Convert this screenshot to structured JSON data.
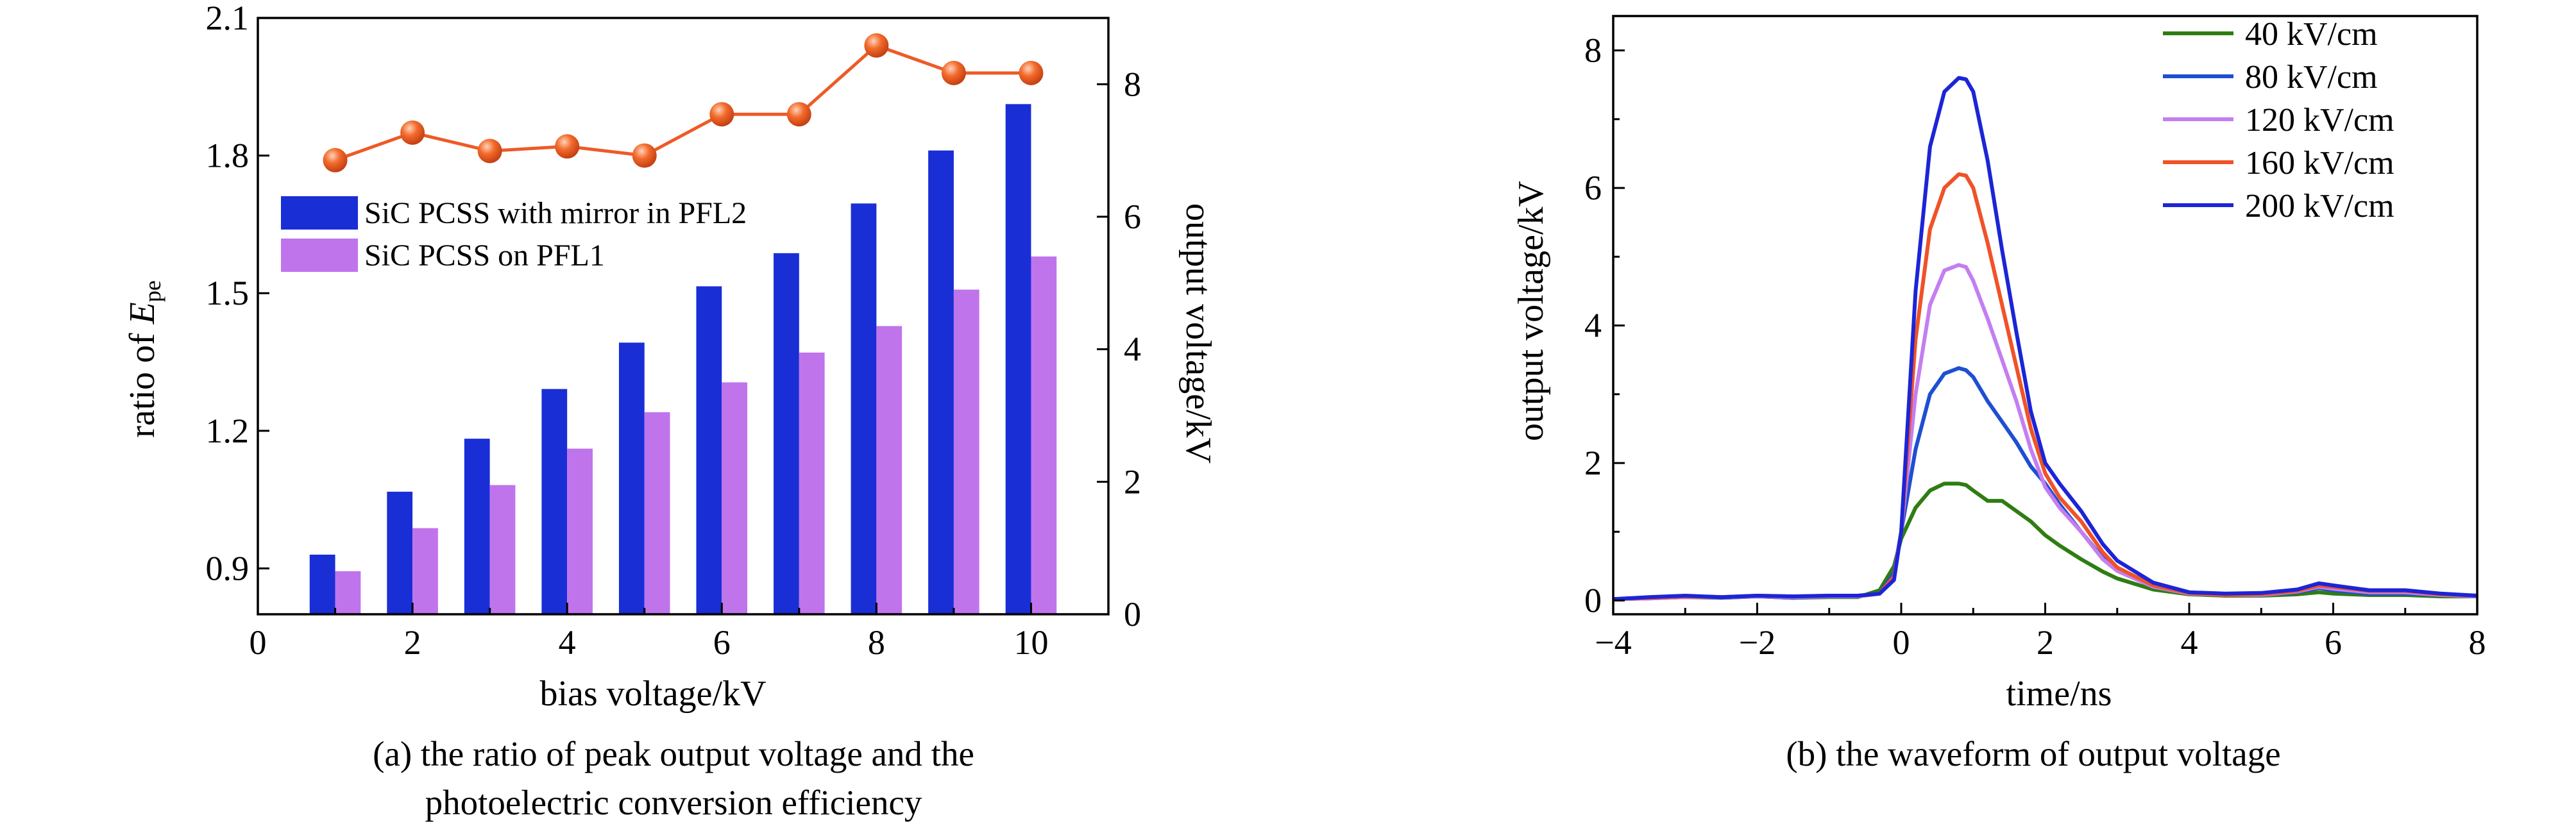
{
  "chart_data": [
    {
      "id": "a",
      "type": "bar",
      "caption_line1": "(a) the ratio of peak output voltage and the",
      "caption_line2": "photoelectric conversion efficiency",
      "xlabel": "bias voltage/kV",
      "ylabel_left_prefix": "ratio of ",
      "ylabel_left_symbol": "E",
      "ylabel_left_subscript": "pe",
      "ylabel_right": "output voltage/kV",
      "xlim": [
        0,
        11
      ],
      "x_ticks": [
        0,
        2,
        4,
        6,
        8,
        10
      ],
      "ylim_left": [
        0.8,
        2.1
      ],
      "y_left_ticks": [
        0.9,
        1.2,
        1.5,
        1.8,
        2.1
      ],
      "y_left_tick_labels": [
        "0.9",
        "1.2",
        "1.5",
        "1.8",
        "2.1"
      ],
      "ylim_right": [
        0,
        9
      ],
      "y_right_ticks": [
        0,
        2,
        4,
        6,
        8
      ],
      "categories": [
        1,
        2,
        3,
        4,
        5,
        6,
        7,
        8,
        9,
        10
      ],
      "series": [
        {
          "name": "SiC PCSS with mirror in PFL2",
          "kind": "bar",
          "axis": "right",
          "color": "#1a2ed6",
          "values": [
            0.9,
            1.85,
            2.65,
            3.4,
            4.1,
            4.95,
            5.45,
            6.2,
            7.0,
            7.7
          ]
        },
        {
          "name": "SiC PCSS on PFL1",
          "kind": "bar",
          "axis": "right",
          "color": "#c074ec",
          "values": [
            0.65,
            1.3,
            1.95,
            2.5,
            3.05,
            3.5,
            3.95,
            4.35,
            4.9,
            5.4
          ]
        },
        {
          "kind": "line",
          "axis": "left",
          "color": "#ee5a26",
          "values": [
            1.79,
            1.85,
            1.81,
            1.82,
            1.8,
            1.89,
            1.89,
            2.04,
            1.98,
            1.98
          ]
        }
      ],
      "legend_position": "left-middle"
    },
    {
      "id": "b",
      "type": "line",
      "caption": "(b) the waveform of output voltage",
      "xlabel": "time/ns",
      "ylabel": "output voltage/kV",
      "xlim": [
        -4,
        8
      ],
      "x_ticks": [
        -4,
        -2,
        0,
        2,
        4,
        6,
        8
      ],
      "x_tick_labels": [
        "−4",
        "−2",
        "0",
        "2",
        "4",
        "6",
        "8"
      ],
      "ylim": [
        -0.2,
        8.5
      ],
      "y_ticks": [
        0,
        2,
        4,
        6,
        8
      ],
      "legend_position": "top-right",
      "x": [
        -4,
        -3.5,
        -3,
        -2.5,
        -2,
        -1.5,
        -1,
        -0.6,
        -0.3,
        -0.1,
        0,
        0.2,
        0.4,
        0.6,
        0.8,
        0.9,
        1.0,
        1.2,
        1.4,
        1.6,
        1.8,
        2.0,
        2.2,
        2.5,
        2.8,
        3.0,
        3.5,
        4.0,
        4.5,
        5.0,
        5.5,
        5.8,
        6.0,
        6.5,
        7.0,
        7.5,
        8.0
      ],
      "series": [
        {
          "name": "40 kV/cm",
          "color": "#2e7d12",
          "values": [
            0.02,
            0.03,
            0.05,
            0.04,
            0.06,
            0.04,
            0.05,
            0.05,
            0.15,
            0.5,
            0.9,
            1.35,
            1.6,
            1.7,
            1.7,
            1.68,
            1.6,
            1.45,
            1.45,
            1.3,
            1.15,
            0.95,
            0.8,
            0.6,
            0.42,
            0.32,
            0.16,
            0.09,
            0.07,
            0.07,
            0.09,
            0.12,
            0.1,
            0.08,
            0.08,
            0.06,
            0.06
          ]
        },
        {
          "name": "80 kV/cm",
          "color": "#1e4fd2",
          "values": [
            0.02,
            0.04,
            0.06,
            0.04,
            0.06,
            0.04,
            0.06,
            0.06,
            0.1,
            0.4,
            1.0,
            2.2,
            3.0,
            3.3,
            3.38,
            3.35,
            3.25,
            2.9,
            2.6,
            2.3,
            1.95,
            1.7,
            1.4,
            1.0,
            0.62,
            0.45,
            0.2,
            0.11,
            0.08,
            0.08,
            0.12,
            0.18,
            0.15,
            0.1,
            0.1,
            0.08,
            0.06
          ]
        },
        {
          "name": "120 kV/cm",
          "color": "#c47ef0",
          "values": [
            0.02,
            0.03,
            0.05,
            0.05,
            0.06,
            0.05,
            0.06,
            0.06,
            0.1,
            0.35,
            1.0,
            3.0,
            4.3,
            4.8,
            4.88,
            4.85,
            4.65,
            4.1,
            3.5,
            2.9,
            2.2,
            1.65,
            1.35,
            1.0,
            0.6,
            0.43,
            0.2,
            0.1,
            0.08,
            0.08,
            0.13,
            0.2,
            0.17,
            0.12,
            0.12,
            0.08,
            0.06
          ]
        },
        {
          "name": "160 kV/cm",
          "color": "#f05228",
          "values": [
            0.02,
            0.04,
            0.06,
            0.05,
            0.07,
            0.06,
            0.07,
            0.07,
            0.1,
            0.35,
            1.0,
            3.8,
            5.4,
            6.0,
            6.2,
            6.18,
            6.0,
            5.2,
            4.3,
            3.4,
            2.5,
            1.85,
            1.5,
            1.15,
            0.7,
            0.48,
            0.22,
            0.11,
            0.08,
            0.09,
            0.14,
            0.22,
            0.2,
            0.14,
            0.14,
            0.09,
            0.07
          ]
        },
        {
          "name": "200 kV/cm",
          "color": "#1c25d6",
          "values": [
            0.02,
            0.05,
            0.07,
            0.05,
            0.07,
            0.06,
            0.07,
            0.07,
            0.1,
            0.3,
            1.0,
            4.5,
            6.6,
            7.4,
            7.6,
            7.58,
            7.4,
            6.4,
            5.1,
            3.9,
            2.75,
            2.0,
            1.7,
            1.3,
            0.82,
            0.58,
            0.26,
            0.12,
            0.1,
            0.11,
            0.16,
            0.25,
            0.22,
            0.15,
            0.15,
            0.1,
            0.07
          ]
        }
      ]
    }
  ]
}
